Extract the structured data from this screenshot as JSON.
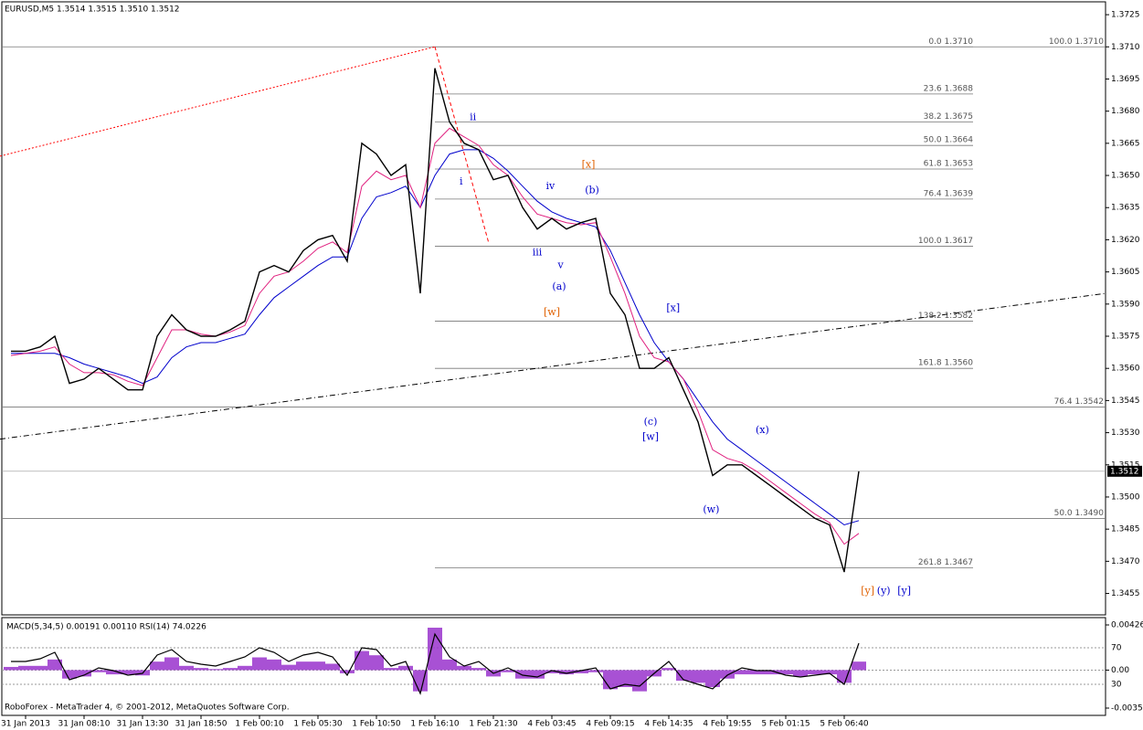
{
  "chart_data": [
    {
      "type": "line",
      "title": "EURUSD,M5  1.3514 1.3515 1.3510 1.3512",
      "x": [
        0,
        1,
        2,
        3,
        4,
        5,
        6,
        7,
        8,
        9,
        10,
        11,
        12,
        13,
        14,
        15,
        16,
        17,
        18,
        19,
        20,
        21,
        22,
        23,
        24,
        25,
        26,
        27,
        28,
        29,
        30,
        31,
        32,
        33,
        34,
        35,
        36,
        37,
        38,
        39,
        40,
        41,
        42,
        43,
        44,
        45,
        46,
        47,
        48,
        49,
        50,
        51,
        52,
        53,
        54,
        55,
        56,
        57,
        58
      ],
      "xlim": [
        -0.625,
        74.875
      ],
      "ylim": [
        1.3445,
        1.3731
      ],
      "xticks": [
        {
          "value": 1,
          "label": "31 Jan 2013"
        },
        {
          "value": 5,
          "label": "31 Jan 08:10"
        },
        {
          "value": 9,
          "label": "31 Jan 13:30"
        },
        {
          "value": 13,
          "label": "31 Jan 18:50"
        },
        {
          "value": 17,
          "label": "1 Feb 00:10"
        },
        {
          "value": 21,
          "label": "1 Feb 05:30"
        },
        {
          "value": 25,
          "label": "1 Feb 10:50"
        },
        {
          "value": 29,
          "label": "1 Feb 16:10"
        },
        {
          "value": 33,
          "label": "1 Feb 21:30"
        },
        {
          "value": 37,
          "label": "4 Feb 03:45"
        },
        {
          "value": 41,
          "label": "4 Feb 09:15"
        },
        {
          "value": 45,
          "label": "4 Feb 14:35"
        },
        {
          "value": 49,
          "label": "4 Feb 19:55"
        },
        {
          "value": 53,
          "label": "5 Feb 01:15"
        },
        {
          "value": 57,
          "label": "5 Feb 06:40"
        }
      ],
      "yticks": [
        {
          "value": 1.3725,
          "label": "1.3725"
        },
        {
          "value": 1.371,
          "label": "1.3710"
        },
        {
          "value": 1.3695,
          "label": "1.3695"
        },
        {
          "value": 1.368,
          "label": "1.3680"
        },
        {
          "value": 1.3665,
          "label": "1.3665"
        },
        {
          "value": 1.365,
          "label": "1.3650"
        },
        {
          "value": 1.3635,
          "label": "1.3635"
        },
        {
          "value": 1.362,
          "label": "1.3620"
        },
        {
          "value": 1.3605,
          "label": "1.3605"
        },
        {
          "value": 1.359,
          "label": "1.3590"
        },
        {
          "value": 1.3575,
          "label": "1.3575"
        },
        {
          "value": 1.356,
          "label": "1.3560"
        },
        {
          "value": 1.3545,
          "label": "1.3545"
        },
        {
          "value": 1.353,
          "label": "1.3530"
        },
        {
          "value": 1.3515,
          "label": "1.3515"
        },
        {
          "value": 1.35,
          "label": "1.3500"
        },
        {
          "value": 1.3485,
          "label": "1.3485"
        },
        {
          "value": 1.347,
          "label": "1.3470"
        },
        {
          "value": 1.3455,
          "label": "1.3455"
        }
      ],
      "series": [
        {
          "color": "#000000",
          "values": [
            1.3568,
            1.3568,
            1.357,
            1.3575,
            1.3553,
            1.3555,
            1.356,
            1.3555,
            1.355,
            1.355,
            1.3575,
            1.3585,
            1.3578,
            1.3575,
            1.3575,
            1.3578,
            1.3582,
            1.3605,
            1.3608,
            1.3605,
            1.3615,
            1.362,
            1.3622,
            1.361,
            1.3665,
            1.366,
            1.365,
            1.3655,
            1.3595,
            1.37,
            1.3675,
            1.3665,
            1.3662,
            1.3648,
            1.365,
            1.3635,
            1.3625,
            1.363,
            1.3625,
            1.3628,
            1.363,
            1.3595,
            1.3585,
            1.356,
            1.356,
            1.3565,
            1.355,
            1.3535,
            1.351,
            1.3515,
            1.3515,
            1.351,
            1.3505,
            1.35,
            1.3495,
            1.349,
            1.3487,
            1.3465,
            1.3512
          ]
        },
        {
          "color": "#e0207f",
          "values": [
            1.3566,
            1.3567,
            1.3568,
            1.357,
            1.3562,
            1.3558,
            1.3558,
            1.3557,
            1.3554,
            1.3552,
            1.3565,
            1.3578,
            1.3578,
            1.3576,
            1.3575,
            1.3577,
            1.358,
            1.3595,
            1.3603,
            1.3605,
            1.361,
            1.3616,
            1.3619,
            1.3614,
            1.3645,
            1.3652,
            1.3648,
            1.365,
            1.3635,
            1.3665,
            1.3672,
            1.3668,
            1.3664,
            1.3655,
            1.365,
            1.364,
            1.3632,
            1.363,
            1.3628,
            1.3627,
            1.3628,
            1.3612,
            1.3595,
            1.3575,
            1.3565,
            1.3563,
            1.3555,
            1.354,
            1.3522,
            1.3518,
            1.3516,
            1.3512,
            1.3507,
            1.3502,
            1.3497,
            1.3492,
            1.3488,
            1.3478,
            1.3483
          ]
        },
        {
          "color": "#0000cc",
          "values": [
            1.3567,
            1.3567,
            1.3567,
            1.3567,
            1.3565,
            1.3562,
            1.356,
            1.3558,
            1.3556,
            1.3553,
            1.3556,
            1.3565,
            1.357,
            1.3572,
            1.3572,
            1.3574,
            1.3576,
            1.3585,
            1.3593,
            1.3598,
            1.3603,
            1.3608,
            1.3612,
            1.3612,
            1.363,
            1.364,
            1.3642,
            1.3645,
            1.3635,
            1.365,
            1.366,
            1.3662,
            1.3662,
            1.3658,
            1.3652,
            1.3645,
            1.3638,
            1.3633,
            1.363,
            1.3628,
            1.3626,
            1.3615,
            1.36,
            1.3585,
            1.3572,
            1.3563,
            1.3555,
            1.3545,
            1.3535,
            1.3527,
            1.3522,
            1.3517,
            1.3512,
            1.3507,
            1.3502,
            1.3497,
            1.3492,
            1.3487,
            1.3489
          ]
        }
      ],
      "last_price": {
        "value": 1.3512,
        "label": "1.3512"
      },
      "fib_near": {
        "from": 29,
        "levels": [
          {
            "value": 1.3688,
            "label": "23.6 1.3688"
          },
          {
            "value": 1.3675,
            "label": "38.2 1.3675"
          },
          {
            "value": 1.3664,
            "label": "50.0 1.3664"
          },
          {
            "value": 1.3653,
            "label": "61.8 1.3653"
          },
          {
            "value": 1.3639,
            "label": "76.4 1.3639"
          },
          {
            "value": 1.3617,
            "label": "100.0 1.3617"
          },
          {
            "value": 1.3582,
            "label": "138.2 1.3582"
          },
          {
            "value": 1.356,
            "label": "161.8 1.3560"
          },
          {
            "value": 1.3467,
            "label": "261.8 1.3467"
          },
          {
            "value": 1.371,
            "label": "0.0 1.3710"
          }
        ]
      },
      "fib_far": {
        "levels": [
          {
            "value": 1.371,
            "label": "100.0 1.3710"
          },
          {
            "value": 1.3542,
            "label": "76.4 1.3542"
          },
          {
            "value": 1.349,
            "label": "50.0 1.3490"
          }
        ]
      },
      "trendlines": [
        {
          "x": [
            -0.75,
            29
          ],
          "values": [
            1.3659,
            1.371
          ],
          "color": "#ff0000",
          "style": "dotted"
        },
        {
          "x": [
            29,
            32.7
          ],
          "values": [
            1.371,
            1.3618
          ],
          "color": "#ff0000",
          "style": "dashed"
        },
        {
          "x": [
            -0.75,
            74.9
          ],
          "values": [
            1.3527,
            1.3595
          ],
          "color": "#000000",
          "style": "dashdot"
        }
      ],
      "wave_labels": [
        {
          "text": "ii",
          "x": 31.6,
          "value": 1.3677,
          "color": "#0000cc"
        },
        {
          "text": "i",
          "x": 30.8,
          "value": 1.3647,
          "color": "#0000cc"
        },
        {
          "text": "iv",
          "x": 36.9,
          "value": 1.3645,
          "color": "#0000cc"
        },
        {
          "text": "(b)",
          "x": 39.75,
          "value": 1.3643,
          "color": "#0000cc"
        },
        {
          "text": "[x]",
          "x": 39.5,
          "value": 1.3655,
          "color": "#e06000"
        },
        {
          "text": "iii",
          "x": 36,
          "value": 1.3614,
          "color": "#0000cc"
        },
        {
          "text": "v",
          "x": 37.6,
          "value": 1.3608,
          "color": "#0000cc"
        },
        {
          "text": "(a)",
          "x": 37.5,
          "value": 1.3598,
          "color": "#0000cc"
        },
        {
          "text": "[w]",
          "x": 37,
          "value": 1.3586,
          "color": "#e06000"
        },
        {
          "text": "[x]",
          "x": 45.3,
          "value": 1.3588,
          "color": "#0000cc"
        },
        {
          "text": "(c)",
          "x": 43.75,
          "value": 1.3535,
          "color": "#0000cc"
        },
        {
          "text": "[w]",
          "x": 43.75,
          "value": 1.3528,
          "color": "#0000cc"
        },
        {
          "text": "(x)",
          "x": 51.4,
          "value": 1.3531,
          "color": "#0000cc"
        },
        {
          "text": "(w)",
          "x": 47.9,
          "value": 1.3494,
          "color": "#0000cc"
        },
        {
          "text": "[y]",
          "x": 58.6,
          "value": 1.3456,
          "color": "#e06000"
        },
        {
          "text": "(y)",
          "x": 59.7,
          "value": 1.3456,
          "color": "#0000cc"
        },
        {
          "text": "[y]",
          "x": 61.1,
          "value": 1.3456,
          "color": "#0000cc"
        }
      ]
    },
    {
      "type": "bar",
      "title": "MACD(5,34,5) 0.00191 0.00110 RSI(14) 74.0226",
      "color": "#9932cc",
      "values": [
        0.0003,
        0.0004,
        0.0004,
        0.001,
        -0.0008,
        -0.0006,
        -0.0002,
        -0.0004,
        -0.0004,
        -0.0005,
        0.0008,
        0.0012,
        0.0004,
        0.0002,
        0.0001,
        0.0002,
        0.0004,
        0.0012,
        0.001,
        0.0005,
        0.0008,
        0.0008,
        0.0006,
        -0.0003,
        0.0018,
        0.0014,
        0.0002,
        0.0004,
        -0.002,
        0.004,
        0.001,
        0.0004,
        0.0002,
        -0.0006,
        -0.0002,
        -0.0008,
        -0.0008,
        -0.0003,
        -0.0004,
        -0.0003,
        -0.0002,
        -0.0018,
        -0.0016,
        -0.002,
        -0.0006,
        0.0002,
        -0.001,
        -0.0012,
        -0.0016,
        -0.0008,
        -0.0004,
        -0.0004,
        -0.0004,
        -0.0004,
        -0.0006,
        -0.0004,
        -0.0004,
        -0.0012,
        0.0008
      ],
      "ylim": [
        -0.00358,
        0.00426
      ],
      "yticks": [
        0.00426,
        {
          "value": 0,
          "label": "0.00"
        },
        -0.00358
      ],
      "y2lim": [
        0,
        100
      ],
      "y2ticks": [
        70,
        30
      ],
      "series": [
        {
          "axis": "y2",
          "color": "#000000",
          "values": [
            55,
            55,
            58,
            65,
            35,
            40,
            48,
            45,
            40,
            42,
            62,
            68,
            55,
            52,
            50,
            55,
            60,
            70,
            65,
            55,
            62,
            65,
            60,
            40,
            70,
            68,
            50,
            55,
            20,
            85,
            60,
            50,
            55,
            42,
            48,
            40,
            38,
            45,
            42,
            45,
            48,
            25,
            30,
            28,
            42,
            55,
            35,
            30,
            25,
            40,
            48,
            45,
            45,
            40,
            38,
            40,
            42,
            30,
            75
          ]
        }
      ]
    }
  ],
  "footer": "RoboForex - MetaTrader 4, © 2001-2012, MetaQuotes Software Corp."
}
